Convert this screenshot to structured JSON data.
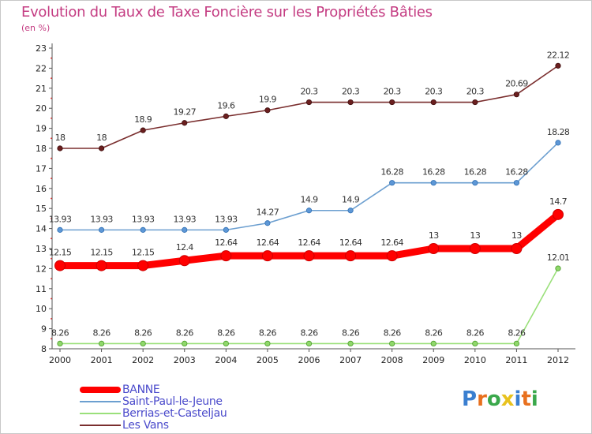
{
  "header": {
    "title": "Evolution du Taux de Taxe Foncière sur les Propriétés Bâties",
    "subtitle": "(en %)"
  },
  "logo": {
    "letters": [
      "P",
      "r",
      "o",
      "x",
      "i",
      "t",
      "i"
    ],
    "colors": [
      "#3a7fd0",
      "#e8701e",
      "#3aa84b",
      "#e8c21e",
      "#3a7fd0",
      "#e8701e",
      "#3aa84b"
    ]
  },
  "chart_data": {
    "type": "line",
    "title": "Evolution du Taux de Taxe Foncière sur les Propriétés Bâties",
    "ylabel": "(en %)",
    "xlabel": "",
    "x": [
      2000,
      2001,
      2002,
      2003,
      2004,
      2005,
      2006,
      2007,
      2008,
      2009,
      2010,
      2011,
      2012
    ],
    "ylim": [
      8,
      23
    ],
    "yticks": [
      8,
      9,
      10,
      11,
      12,
      13,
      14,
      15,
      16,
      17,
      18,
      19,
      20,
      21,
      22,
      23
    ],
    "grid": false,
    "legend_position": "bottom-left",
    "series": [
      {
        "name": "BANNE",
        "color": "#ff0000",
        "values": [
          12.15,
          12.15,
          12.15,
          12.4,
          12.64,
          12.64,
          12.64,
          12.64,
          12.64,
          13,
          13,
          13,
          14.7
        ],
        "labels": [
          "12.15",
          "12.15",
          "12.15",
          "12.4",
          "12.64",
          "12.64",
          "12.64",
          "12.64",
          "12.64",
          "13",
          "13",
          "13",
          "14.7"
        ]
      },
      {
        "name": "Saint-Paul-le-Jeune",
        "color": "#6c9fd0",
        "values": [
          13.93,
          13.93,
          13.93,
          13.93,
          13.93,
          14.27,
          14.9,
          14.9,
          16.28,
          16.28,
          16.28,
          16.28,
          18.28
        ],
        "labels": [
          "13.93",
          "13.93",
          "13.93",
          "13.93",
          "13.93",
          "14.27",
          "14.9",
          "14.9",
          "16.28",
          "16.28",
          "16.28",
          "16.28",
          "18.28"
        ]
      },
      {
        "name": "Berrias-et-Casteljau",
        "color": "#9ae07a",
        "values": [
          8.26,
          8.26,
          8.26,
          8.26,
          8.26,
          8.26,
          8.26,
          8.26,
          8.26,
          8.26,
          8.26,
          8.26,
          12.01
        ],
        "labels": [
          "8.26",
          "8.26",
          "8.26",
          "8.26",
          "8.26",
          "8.26",
          "8.26",
          "8.26",
          "8.26",
          "8.26",
          "8.26",
          "8.26",
          "12.01"
        ]
      },
      {
        "name": "Les Vans",
        "color": "#7a2e2e",
        "values": [
          18,
          18,
          18.9,
          19.27,
          19.6,
          19.9,
          20.3,
          20.3,
          20.3,
          20.3,
          20.3,
          20.69,
          22.12
        ],
        "labels": [
          "18",
          "18",
          "18.9",
          "19.27",
          "19.6",
          "19.9",
          "20.3",
          "20.3",
          "20.3",
          "20.3",
          "20.3",
          "20.69",
          "22.12"
        ]
      }
    ]
  }
}
